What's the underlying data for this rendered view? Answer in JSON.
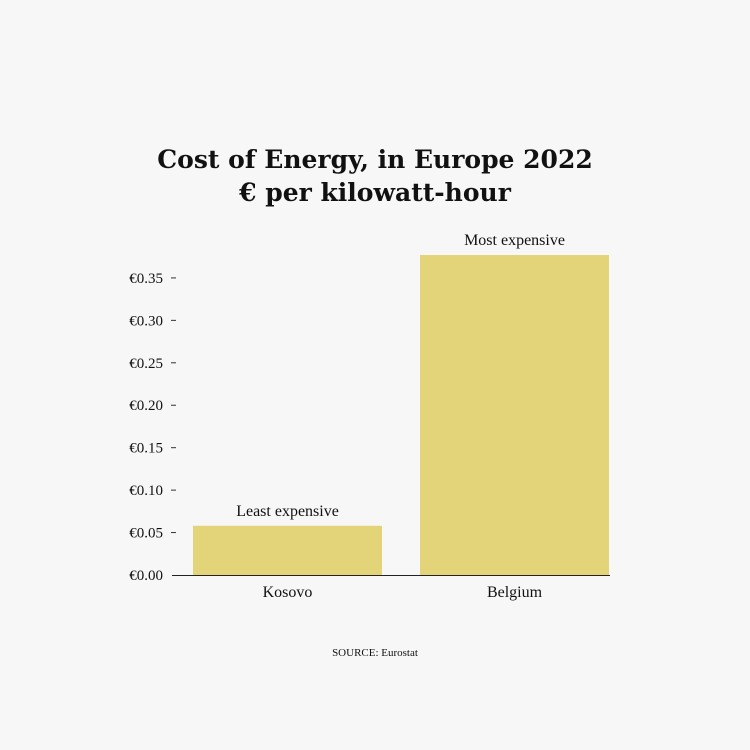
{
  "chart_data": {
    "type": "bar",
    "title": "Cost of Energy, in Europe 2022",
    "subtitle": "€ per kilowatt-hour",
    "categories": [
      "Kosovo",
      "Belgium"
    ],
    "values": [
      0.058,
      0.377
    ],
    "annotations": [
      "Least expensive",
      "Most expensive"
    ],
    "ylim": [
      0,
      0.38
    ],
    "yticks": [
      0.0,
      0.05,
      0.1,
      0.15,
      0.2,
      0.25,
      0.3,
      0.35
    ],
    "ytick_labels": [
      "€0.00",
      "€0.05",
      "€0.10",
      "€0.15",
      "€0.20",
      "€0.25",
      "€0.30",
      "€0.35"
    ],
    "grid": false,
    "bar_color": "#e3d47a",
    "source": "SOURCE: Eurostat"
  }
}
